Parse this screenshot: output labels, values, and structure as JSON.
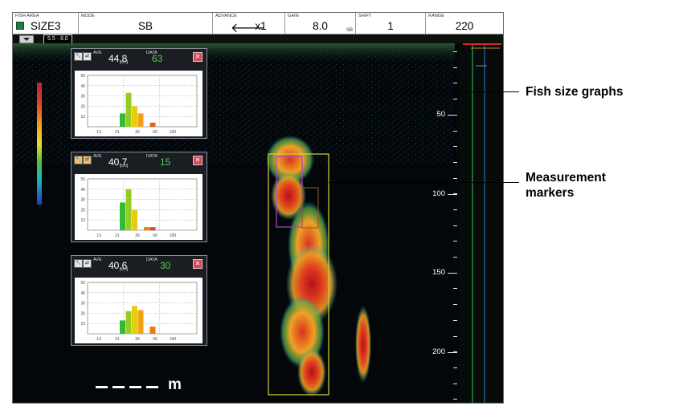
{
  "topbar": {
    "fish_area": {
      "label": "FISH AREA",
      "value": "SIZE3"
    },
    "mode": {
      "label": "MODE",
      "value": "SB"
    },
    "advance": {
      "label": "ADVANCE",
      "arrow": "🡐",
      "value": "x1"
    },
    "gain": {
      "label": "GAIN",
      "value": "8.0",
      "sub": "SB"
    },
    "shift": {
      "label": "SHIFT",
      "value": "1"
    },
    "range": {
      "label": "RANGE",
      "value": "220"
    }
  },
  "strip": {
    "scale_chip": "5.5 - 8.0"
  },
  "panels": [
    {
      "ave_label": "AVE",
      "ave": "44.8",
      "unit": "[cm]",
      "data_label": "DATA",
      "count": "63",
      "close": "✕",
      "yticks": [
        "50",
        "40",
        "30",
        "20",
        "10"
      ],
      "xticks": [
        "13",
        "21",
        "36",
        "60",
        "100"
      ],
      "bars": [
        {
          "v": 13,
          "c": "#33bb33"
        },
        {
          "v": 33,
          "c": "#96cc22"
        },
        {
          "v": 20,
          "c": "#e5cc10"
        },
        {
          "v": 13,
          "c": "#f0a215"
        },
        {
          "v": 0,
          "c": "#ee7a12"
        },
        {
          "v": 4,
          "c": "#e06512"
        }
      ]
    },
    {
      "ave_label": "AVE",
      "ave": "40.7",
      "unit": "[cm]",
      "data_label": "DATA",
      "count": "15",
      "close": "✕",
      "yticks": [
        "50",
        "40",
        "30",
        "20",
        "10"
      ],
      "xticks": [
        "13",
        "21",
        "36",
        "60",
        "100"
      ],
      "bars": [
        {
          "v": 27,
          "c": "#33bb33"
        },
        {
          "v": 40,
          "c": "#96cc22"
        },
        {
          "v": 20,
          "c": "#e5cc10"
        },
        {
          "v": 0,
          "c": "#f0a215"
        },
        {
          "v": 3,
          "c": "#ee7a12"
        },
        {
          "v": 3,
          "c": "#d9402a"
        }
      ]
    },
    {
      "ave_label": "AVE",
      "ave": "40.6",
      "unit": "[cm]",
      "data_label": "DATA",
      "count": "30",
      "close": "✕",
      "yticks": [
        "50",
        "40",
        "30",
        "20",
        "10"
      ],
      "xticks": [
        "13",
        "21",
        "36",
        "60",
        "100"
      ],
      "bars": [
        {
          "v": 13,
          "c": "#33bb33"
        },
        {
          "v": 22,
          "c": "#96cc22"
        },
        {
          "v": 27,
          "c": "#e5cc10"
        },
        {
          "v": 23,
          "c": "#f0a215"
        },
        {
          "v": 0,
          "c": "#ee7a12"
        },
        {
          "v": 7,
          "c": "#ee7a12"
        }
      ]
    }
  ],
  "depth_scale": {
    "labels": [
      "50",
      "100",
      "150",
      "200"
    ]
  },
  "scale_bar": {
    "unit": "m"
  },
  "annotations": {
    "fish_size": "Fish size graphs",
    "markers_line1": "Measurement",
    "markers_line2": "markers"
  },
  "colors": {
    "fish_area_check": "#1b7f3f",
    "close": "#d84a5a",
    "count_text": "#4fd24f",
    "marker_outer": "#d4d43a",
    "marker_inner": "#b042c8"
  }
}
